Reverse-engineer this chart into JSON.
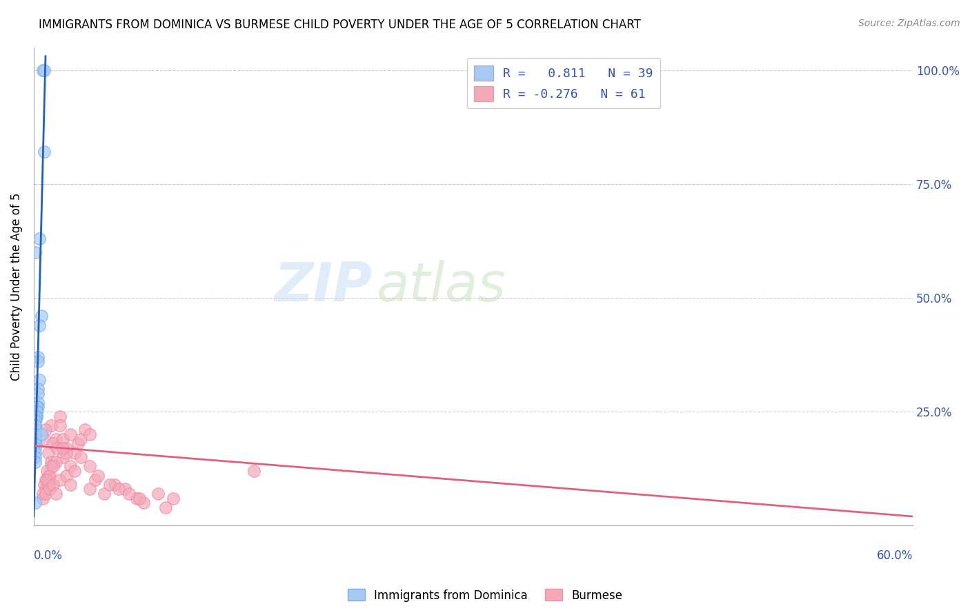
{
  "title": "IMMIGRANTS FROM DOMINICA VS BURMESE CHILD POVERTY UNDER THE AGE OF 5 CORRELATION CHART",
  "source": "Source: ZipAtlas.com",
  "ylabel": "Child Poverty Under the Age of 5",
  "yticks": [
    0.0,
    0.25,
    0.5,
    0.75,
    1.0
  ],
  "ytick_labels_right": [
    "",
    "25.0%",
    "50.0%",
    "75.0%",
    "100.0%"
  ],
  "xmin": 0.0,
  "xmax": 0.6,
  "ymin": 0.0,
  "ymax": 1.05,
  "watermark_zip": "ZIP",
  "watermark_atlas": "atlas",
  "blue_color": "#a8c8f5",
  "pink_color": "#f5a8b8",
  "blue_line_color": "#2060c0",
  "pink_line_color": "#e06080",
  "blue_dot_edge": "#7ab0e8",
  "pink_dot_edge": "#e890a8",
  "legend_blue_label": "R =   0.811   N = 39",
  "legend_pink_label": "R = -0.276   N = 61",
  "legend_blue_color": "#a8c8f5",
  "legend_pink_color": "#f5a8b8",
  "bottom_legend_blue": "Immigrants from Dominica",
  "bottom_legend_pink": "Burmese",
  "blue_line_x0": 0.0,
  "blue_line_y0": 0.02,
  "blue_line_x1": 0.008,
  "blue_line_y1": 1.03,
  "pink_line_x0": 0.0,
  "pink_line_y0": 0.175,
  "pink_line_x1": 0.6,
  "pink_line_y1": 0.02,
  "dominica_x": [
    0.006,
    0.007,
    0.007,
    0.004,
    0.001,
    0.005,
    0.004,
    0.003,
    0.003,
    0.004,
    0.003,
    0.003,
    0.003,
    0.003,
    0.002,
    0.002,
    0.002,
    0.002,
    0.002,
    0.002,
    0.001,
    0.001,
    0.001,
    0.001,
    0.001,
    0.001,
    0.001,
    0.001,
    0.001,
    0.001,
    0.001,
    0.001,
    0.001,
    0.001,
    0.001,
    0.001,
    0.001,
    0.001,
    0.005
  ],
  "dominica_y": [
    1.0,
    1.0,
    0.82,
    0.63,
    0.6,
    0.46,
    0.44,
    0.37,
    0.36,
    0.32,
    0.3,
    0.29,
    0.27,
    0.26,
    0.26,
    0.26,
    0.25,
    0.25,
    0.24,
    0.24,
    0.24,
    0.23,
    0.23,
    0.22,
    0.22,
    0.21,
    0.2,
    0.2,
    0.2,
    0.19,
    0.19,
    0.18,
    0.18,
    0.17,
    0.16,
    0.15,
    0.14,
    0.05,
    0.2
  ],
  "burmese_x": [
    0.007,
    0.012,
    0.015,
    0.01,
    0.008,
    0.013,
    0.018,
    0.012,
    0.016,
    0.02,
    0.025,
    0.022,
    0.02,
    0.03,
    0.028,
    0.025,
    0.035,
    0.032,
    0.038,
    0.018,
    0.022,
    0.02,
    0.015,
    0.012,
    0.01,
    0.008,
    0.007,
    0.009,
    0.011,
    0.013,
    0.008,
    0.006,
    0.01,
    0.009,
    0.006,
    0.008,
    0.011,
    0.013,
    0.015,
    0.018,
    0.022,
    0.025,
    0.028,
    0.038,
    0.042,
    0.048,
    0.055,
    0.062,
    0.07,
    0.085,
    0.15,
    0.095,
    0.075,
    0.09,
    0.032,
    0.038,
    0.044,
    0.052,
    0.058,
    0.065,
    0.072
  ],
  "burmese_y": [
    0.19,
    0.22,
    0.19,
    0.16,
    0.21,
    0.18,
    0.24,
    0.14,
    0.17,
    0.19,
    0.2,
    0.17,
    0.15,
    0.18,
    0.16,
    0.13,
    0.21,
    0.19,
    0.2,
    0.22,
    0.16,
    0.17,
    0.14,
    0.13,
    0.11,
    0.1,
    0.09,
    0.12,
    0.11,
    0.13,
    0.08,
    0.07,
    0.09,
    0.1,
    0.06,
    0.07,
    0.08,
    0.09,
    0.07,
    0.1,
    0.11,
    0.09,
    0.12,
    0.08,
    0.1,
    0.07,
    0.09,
    0.08,
    0.06,
    0.07,
    0.12,
    0.06,
    0.05,
    0.04,
    0.15,
    0.13,
    0.11,
    0.09,
    0.08,
    0.07,
    0.06
  ]
}
